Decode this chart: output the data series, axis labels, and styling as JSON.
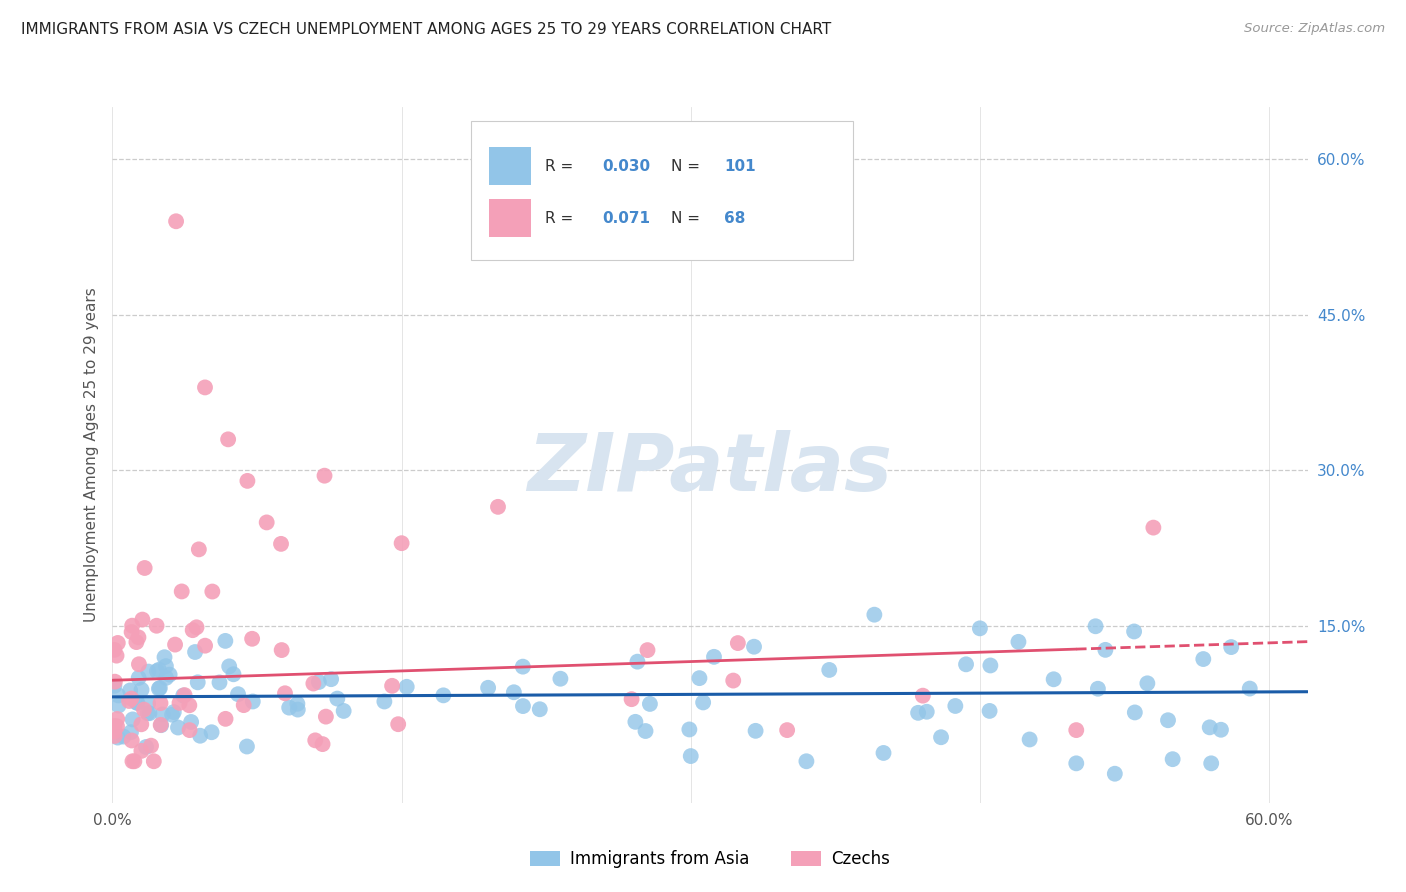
{
  "title": "IMMIGRANTS FROM ASIA VS CZECH UNEMPLOYMENT AMONG AGES 25 TO 29 YEARS CORRELATION CHART",
  "source": "Source: ZipAtlas.com",
  "ylabel": "Unemployment Among Ages 25 to 29 years",
  "xlim": [
    0.0,
    0.62
  ],
  "ylim": [
    -0.02,
    0.65
  ],
  "legend_R_blue": "0.030",
  "legend_N_blue": "101",
  "legend_R_pink": "0.071",
  "legend_N_pink": "68",
  "blue_color": "#92C5E8",
  "pink_color": "#F4A0B8",
  "trend_blue_color": "#1a5ca8",
  "trend_pink_color": "#e05070",
  "background_color": "#ffffff",
  "grid_color": "#cccccc",
  "title_color": "#222222",
  "watermark_color": "#d8e4f0",
  "right_axis_color": "#4488cc",
  "label_color": "#555555",
  "source_color": "#999999"
}
